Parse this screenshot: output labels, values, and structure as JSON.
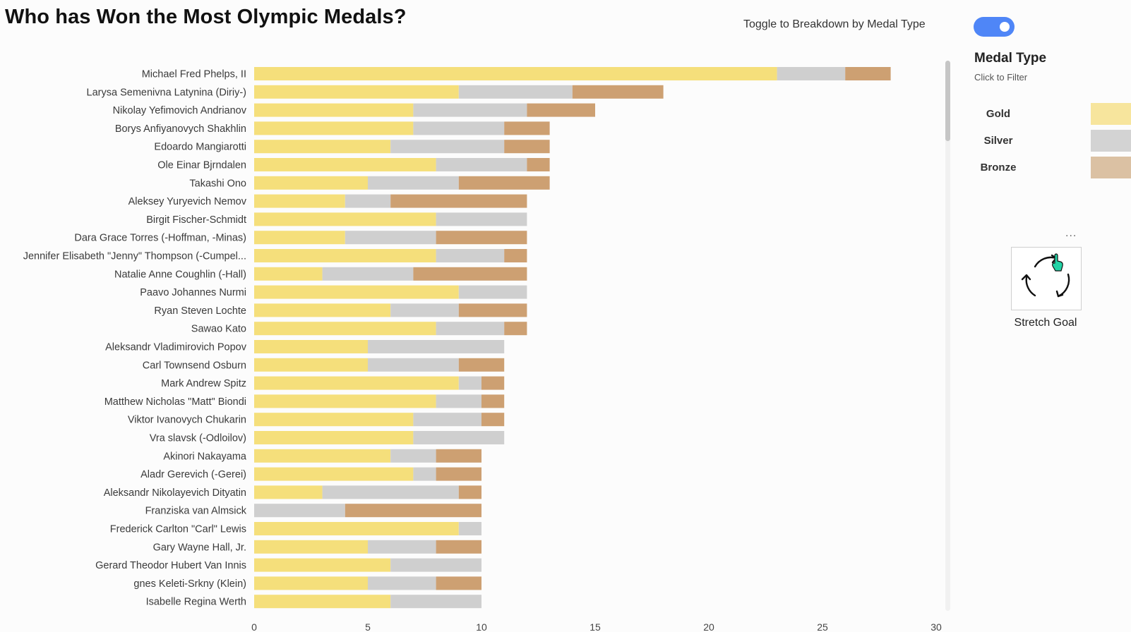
{
  "page": {
    "title": "Who has Won the Most Olympic Medals?",
    "toggle_label": "Toggle to Breakdown by Medal Type",
    "toggle_on": true,
    "more_options": "...",
    "stretch_label": "Stretch Goal",
    "stretch_icon": "refresh-cycle-icon"
  },
  "legend": {
    "title": "Medal Type",
    "subtitle": "Click to Filter",
    "items": [
      {
        "label": "Gold",
        "color": "#f7e59d"
      },
      {
        "label": "Silver",
        "color": "#d3d3d3"
      },
      {
        "label": "Bronze",
        "color": "#dbc1a3"
      }
    ]
  },
  "chart_data": {
    "type": "bar",
    "orientation": "horizontal",
    "stacked": true,
    "title": "",
    "xlabel": "",
    "ylabel": "",
    "xlim": [
      0,
      30
    ],
    "xticks": [
      0,
      5,
      10,
      15,
      20,
      25,
      30
    ],
    "grid": false,
    "series_colors": {
      "Gold": "#f5df7b",
      "Silver": "#cfcfcf",
      "Bronze": "#cda072"
    },
    "categories": [
      "Michael Fred Phelps, II",
      "Larysa Semenivna Latynina (Diriy-)",
      "Nikolay Yefimovich Andrianov",
      "Borys Anfiyanovych Shakhlin",
      "Edoardo Mangiarotti",
      "Ole Einar Bjrndalen",
      "Takashi Ono",
      "Aleksey Yuryevich Nemov",
      "Birgit Fischer-Schmidt",
      "Dara Grace Torres (-Hoffman, -Minas)",
      "Jennifer Elisabeth \"Jenny\" Thompson (-Cumpel...",
      "Natalie Anne Coughlin (-Hall)",
      "Paavo Johannes Nurmi",
      "Ryan Steven Lochte",
      "Sawao Kato",
      "Aleksandr Vladimirovich Popov",
      "Carl Townsend Osburn",
      "Mark Andrew Spitz",
      "Matthew Nicholas \"Matt\" Biondi",
      "Viktor Ivanovych Chukarin",
      "Vra slavsk (-Odloilov)",
      "Akinori Nakayama",
      "Aladr Gerevich (-Gerei)",
      "Aleksandr Nikolayevich Dityatin",
      "Franziska van Almsick",
      "Frederick Carlton \"Carl\" Lewis",
      "Gary Wayne Hall, Jr.",
      "Gerard Theodor Hubert Van Innis",
      "gnes Keleti-Srkny (Klein)",
      "Isabelle Regina Werth"
    ],
    "series": [
      {
        "name": "Gold",
        "values": [
          23,
          9,
          7,
          7,
          6,
          8,
          5,
          4,
          8,
          4,
          8,
          3,
          9,
          6,
          8,
          5,
          5,
          9,
          8,
          7,
          7,
          6,
          7,
          3,
          0,
          9,
          5,
          6,
          5,
          6
        ]
      },
      {
        "name": "Silver",
        "values": [
          3,
          5,
          5,
          4,
          5,
          4,
          4,
          2,
          4,
          4,
          3,
          4,
          3,
          3,
          3,
          6,
          4,
          1,
          2,
          3,
          4,
          2,
          1,
          6,
          4,
          1,
          3,
          4,
          3,
          4
        ]
      },
      {
        "name": "Bronze",
        "values": [
          2,
          4,
          3,
          2,
          2,
          1,
          4,
          6,
          0,
          4,
          1,
          5,
          0,
          3,
          1,
          0,
          2,
          1,
          1,
          1,
          0,
          2,
          2,
          1,
          6,
          0,
          2,
          0,
          2,
          0
        ]
      }
    ]
  }
}
